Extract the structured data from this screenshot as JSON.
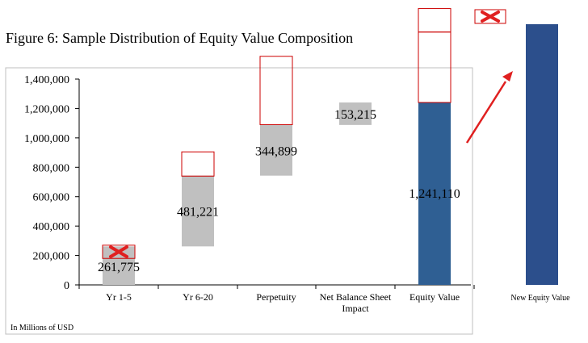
{
  "chart_data": {
    "type": "bar",
    "subtype": "waterfall",
    "title": "Figure 6: Sample Distribution of Equity Value Composition",
    "unit_note": "In Millions of USD",
    "ylim": [
      0,
      1400000
    ],
    "yticks": [
      0,
      200000,
      400000,
      600000,
      800000,
      1000000,
      1200000,
      1400000
    ],
    "ytick_labels": [
      "0",
      "200,000",
      "400,000",
      "600,000",
      "800,000",
      "1,000,000",
      "1,200,000",
      "1,400,000"
    ],
    "categories": [
      "Yr 1-5",
      "Yr 6-20",
      "Perpetuity",
      "Net Balance Sheet",
      "Equity Value"
    ],
    "category_second_line": [
      "",
      "",
      "",
      "Impact",
      ""
    ],
    "bars": [
      {
        "category": "Yr 1-5",
        "base": 0,
        "value": 261775,
        "label": "261,775",
        "color": "#c0c0c0"
      },
      {
        "category": "Yr 6-20",
        "base": 261775,
        "value": 481221,
        "label": "481,221",
        "color": "#c0c0c0"
      },
      {
        "category": "Perpetuity",
        "base": 742996,
        "value": 344899,
        "label": "344,899",
        "color": "#c0c0c0"
      },
      {
        "category": "Net Balance Sheet Impact",
        "base": 1087895,
        "value": 153215,
        "label": "153,215",
        "color": "#c0c0c0"
      },
      {
        "category": "Equity Value",
        "base": 0,
        "value": 1241110,
        "label": "1,241,110",
        "color": "#2f5f93"
      }
    ],
    "overlay_boxes": [
      {
        "category": "Yr 1-5",
        "from": 180000,
        "to": 270000,
        "crossed": true
      },
      {
        "category": "Yr 6-20",
        "from": 740000,
        "to": 905000,
        "crossed": false
      },
      {
        "category": "Perpetuity",
        "from": 1090000,
        "to": 1555000,
        "crossed": false
      },
      {
        "category": "Equity Value",
        "from": 1241110,
        "to": 1720000,
        "crossed": false
      },
      {
        "category": "Equity Value",
        "from": 1720000,
        "to": 1880000,
        "crossed": false
      }
    ],
    "new_bar": {
      "label": "New Equity Value",
      "color": "#2c4f8c"
    },
    "colors": {
      "grey_bar": "#c0c0c0",
      "blue_bar": "#2f5f93",
      "outline": "#cc0000",
      "cross": "#e02020",
      "arrow": "#e02020"
    }
  }
}
